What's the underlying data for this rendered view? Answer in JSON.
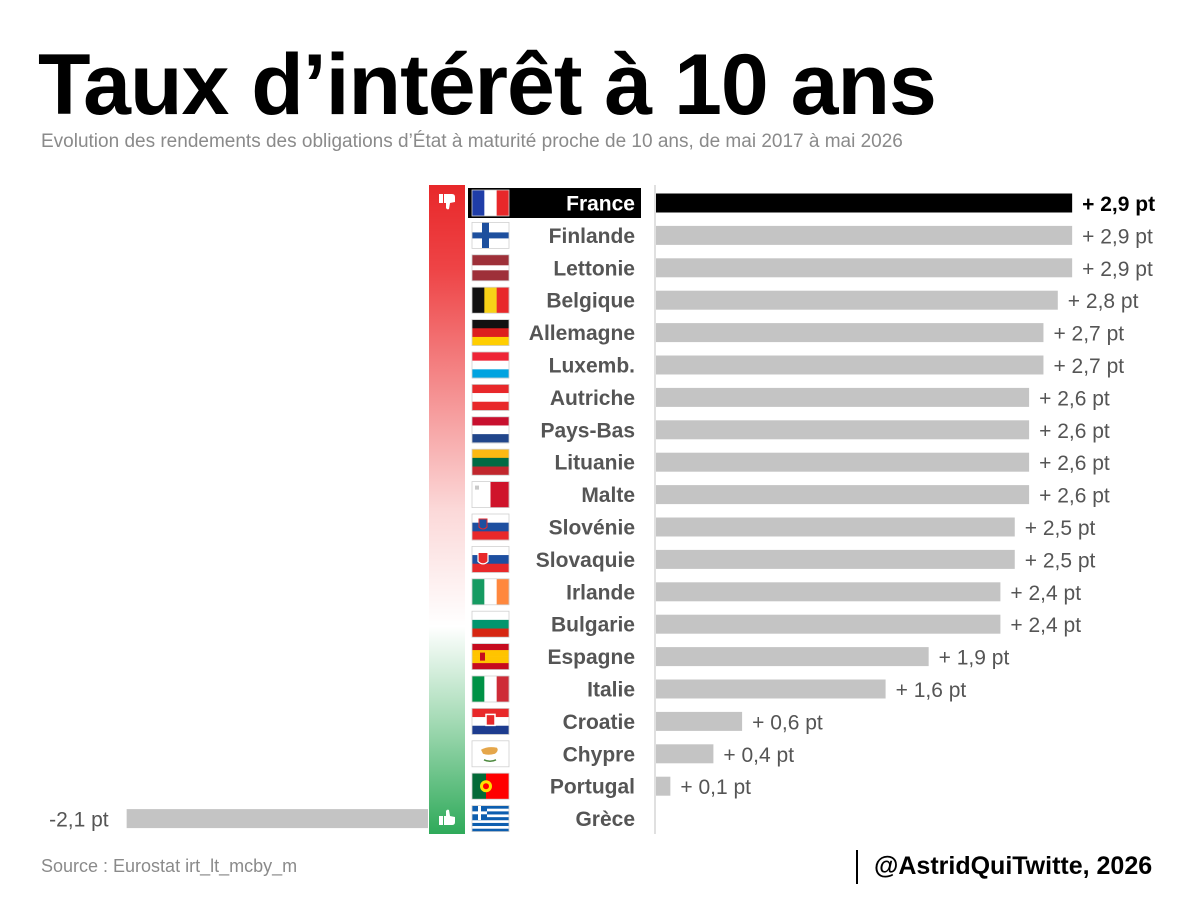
{
  "header": {
    "title": "Taux d’intérêt à 10 ans",
    "subtitle": "Evolution des rendements des obligations d’État à maturité proche de 10 ans, de mai 2017 à mai 2026"
  },
  "footer": {
    "source": "Source : Eurostat irt_lt_mcby_m",
    "credit": "@AstridQuiTwitte, 2026"
  },
  "colors": {
    "highlight_bar": "#000000",
    "bar": "#c4c4c4",
    "scale_top": "#e8282a",
    "scale_bottom": "#2faa5a",
    "label_text": "#555555"
  },
  "icons": {
    "scale_top": "thumbs-down-icon",
    "scale_bottom": "thumbs-up-icon"
  },
  "chart_data": {
    "type": "bar",
    "orientation": "horizontal",
    "title": "Taux d’intérêt à 10 ans",
    "subtitle": "Evolution des rendements des obligations d’État à maturité proche de 10 ans, de mai 2017 à mai 2026",
    "unit": "pt",
    "categories": [
      "France",
      "Finlande",
      "Lettonie",
      "Belgique",
      "Allemagne",
      "Luxemb.",
      "Autriche",
      "Pays-Bas",
      "Lituanie",
      "Malte",
      "Slovénie",
      "Slovaquie",
      "Irlande",
      "Bulgarie",
      "Espagne",
      "Italie",
      "Croatie",
      "Chypre",
      "Portugal",
      "Grèce"
    ],
    "flags": [
      "fr",
      "fi",
      "lv",
      "be",
      "de",
      "lu",
      "at",
      "nl",
      "lt",
      "mt",
      "si",
      "sk",
      "ie",
      "bg",
      "es",
      "it",
      "hr",
      "cy",
      "pt",
      "gr"
    ],
    "values": [
      2.9,
      2.9,
      2.9,
      2.8,
      2.7,
      2.7,
      2.6,
      2.6,
      2.6,
      2.6,
      2.5,
      2.5,
      2.4,
      2.4,
      1.9,
      1.6,
      0.6,
      0.4,
      0.1,
      -2.1
    ],
    "data_labels": [
      "+ 2,9 pt",
      "+ 2,9 pt",
      "+ 2,9 pt",
      "+ 2,8 pt",
      "+ 2,7 pt",
      "+ 2,7 pt",
      "+ 2,6 pt",
      "+ 2,6 pt",
      "+ 2,6 pt",
      "+ 2,6 pt",
      "+ 2,5 pt",
      "+ 2,5 pt",
      "+ 2,4 pt",
      "+ 2,4 pt",
      "+ 1,9 pt",
      "+ 1,6 pt",
      "+ 0,6 pt",
      "+ 0,4 pt",
      "+ 0,1 pt",
      "-2,1 pt"
    ],
    "highlight": "France"
  }
}
